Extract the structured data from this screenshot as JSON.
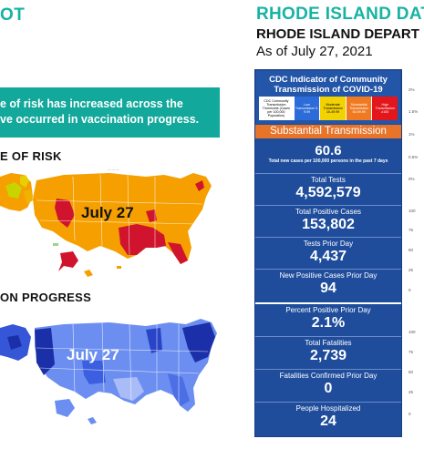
{
  "left": {
    "title": "OT",
    "banner_line1": "e of risk has increased across the",
    "banner_line2": "ve occurred in vaccination progress.",
    "risk_heading": "E OF RISK",
    "vax_heading": "ON PROGRESS",
    "risk_map_label": "July 27",
    "vax_map_label": "July 27",
    "colors": {
      "teal": "#17b3a3",
      "orange": "#f5a000",
      "red": "#d0142e",
      "blue_dark": "#1b2fa8",
      "blue_light": "#5d83ea"
    }
  },
  "right": {
    "title": "RHODE ISLAND DAT",
    "subtitle": "RHODE ISLAND DEPART",
    "as_of": "As of July 27, 2021",
    "cdc_title_1": "CDC Indicator of Community",
    "cdc_title_2": "Transmission of COVID-19",
    "cdc_cells": [
      "CDC Community Transmission Thresholds (Cases per 100,000 Population)",
      "Low Transmission 0-9.99",
      "Moderate Transmission 10-49.99",
      "Substantial Transmission 50-99.99",
      "High Transmission ≥100"
    ],
    "transmission_level": "Substantial Transmission",
    "stats": [
      {
        "label": "",
        "value": "60.6",
        "note": "Total new cases per 100,000 persons in the past 7 days"
      },
      {
        "label": "Total Tests",
        "value": "4,592,579"
      },
      {
        "label": "Total Positive Cases",
        "value": "153,802"
      },
      {
        "label": "Tests Prior Day",
        "value": "4,437"
      },
      {
        "label": "New Positive Cases Prior Day",
        "value": "94"
      },
      {
        "label": "Percent Positive Prior Day",
        "value": "2.1%"
      },
      {
        "label": "Total Fatalities",
        "value": "2,739"
      },
      {
        "label": "Fatalities Confirmed Prior Day",
        "value": "0"
      },
      {
        "label": "People Hospitalized",
        "value": "24"
      }
    ],
    "axis_ticks": [
      "2%",
      "1.5%",
      "1%",
      "0.5%",
      "0%",
      "100",
      "75",
      "50",
      "25",
      "0",
      "100",
      "75",
      "50",
      "25",
      "0"
    ]
  }
}
